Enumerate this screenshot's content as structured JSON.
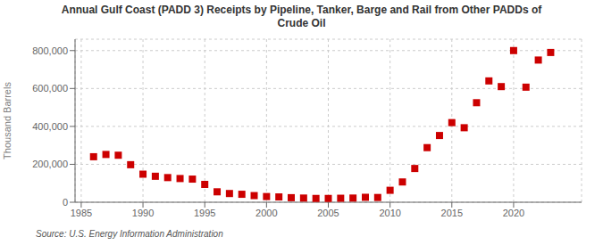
{
  "chart_data": {
    "type": "scatter",
    "title": "Annual Gulf Coast (PADD 3) Receipts by Pipeline, Tanker, Barge and Rail from Other PADDs of\nCrude Oil",
    "ylabel": "Thousand Barrels",
    "annotations": [
      "Source: U.S. Energy Information Administration"
    ],
    "x": [
      1986,
      1987,
      1988,
      1989,
      1990,
      1991,
      1992,
      1993,
      1994,
      1995,
      1996,
      1997,
      1998,
      1999,
      2000,
      2001,
      2002,
      2003,
      2004,
      2005,
      2006,
      2007,
      2008,
      2009,
      2010,
      2011,
      2012,
      2013,
      2014,
      2015,
      2016,
      2017,
      2018,
      2019,
      2020,
      2021,
      2022,
      2023
    ],
    "values": [
      240000,
      252000,
      248000,
      198000,
      148000,
      137000,
      130000,
      125000,
      122000,
      94000,
      55000,
      46000,
      42000,
      35000,
      30000,
      28000,
      24000,
      22000,
      20000,
      20000,
      21000,
      22000,
      26000,
      25000,
      63000,
      107000,
      178000,
      288000,
      352000,
      420000,
      393000,
      525000,
      640000,
      610000,
      800000,
      607000,
      750000,
      790000
    ],
    "color": "#cc0000",
    "marker": "square",
    "xlim": [
      1984.5,
      2025.5
    ],
    "ylim": [
      0,
      860000
    ],
    "xticks": [
      1985,
      1990,
      1995,
      2000,
      2005,
      2010,
      2015,
      2020
    ],
    "yticks": [
      0,
      {
        "value": 200000,
        "label": "200,000"
      },
      {
        "value": 400000,
        "label": "400,000"
      },
      {
        "value": 600000,
        "label": "600,000"
      },
      {
        "value": 800000,
        "label": "800,000"
      }
    ],
    "grid": true
  }
}
